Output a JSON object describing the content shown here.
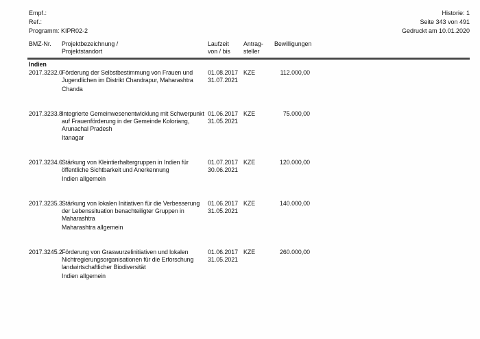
{
  "meta": {
    "recipient_label": "Empf.:",
    "ref_label": "Ref.:",
    "program_label": "Programm: KIPR02-2",
    "historie": "Historie: 1",
    "page_info": "Seite 343 von 491",
    "printed": "Gedruckt am 10.01.2020"
  },
  "table": {
    "header": {
      "bmz": "BMZ-Nr.",
      "project_line1": "Projektbezeichnung /",
      "project_line2": "Projektstandort",
      "laufzeit_line1": "Laufzeit",
      "laufzeit_line2": "von / bis",
      "antragsteller_line1": "Antrag-",
      "antragsteller_line2": "steller",
      "bewilligungen": "Bewilligungen"
    },
    "section": "Indien",
    "rows": [
      {
        "bmz": "2017.3232.0",
        "description_lines": [
          "Förderung der Selbstbestimmung von Frauen und",
          "Jugendlichen im Distrikt Chandrapur, Maharashtra"
        ],
        "location": "Chanda",
        "from": "01.08.2017",
        "to": "31.07.2021",
        "applicant": "KZE",
        "amount": "112.000,00"
      },
      {
        "bmz": "2017.3233.8",
        "description_lines": [
          "Integrierte Gemeinwesenentwicklung mit Schwerpunkt",
          "auf Frauenförderung in der Gemeinde Koloriang,",
          "Arunachal Pradesh"
        ],
        "location": "Itanagar",
        "from": "01.06.2017",
        "to": "31.05.2021",
        "applicant": "KZE",
        "amount": "75.000,00"
      },
      {
        "bmz": "2017.3234.6",
        "description_lines": [
          "Stärkung von Kleintierhaltergruppen in Indien für",
          "öffentliche Sichtbarkeit und Anerkennung"
        ],
        "location": "Indien allgemein",
        "from": "01.07.2017",
        "to": "30.06.2021",
        "applicant": "KZE",
        "amount": "120.000,00"
      },
      {
        "bmz": "2017.3235.3",
        "description_lines": [
          "Stärkung von lokalen Initiativen für die Verbesserung",
          "der Lebenssituation benachteiligter Gruppen in",
          "Maharashtra"
        ],
        "location": "Maharashtra allgemein",
        "from": "01.06.2017",
        "to": "31.05.2021",
        "applicant": "KZE",
        "amount": "140.000,00"
      },
      {
        "bmz": "2017.3245.2",
        "description_lines": [
          "Förderung von Graswurzelinitiativen und lokalen",
          "Nichtregierungsorganisationen für die Erforschung",
          "landwirtschaftlicher Biodiversität"
        ],
        "location": "Indien allgemein",
        "from": "01.06.2017",
        "to": "31.05.2021",
        "applicant": "KZE",
        "amount": "260.000,00"
      }
    ]
  }
}
